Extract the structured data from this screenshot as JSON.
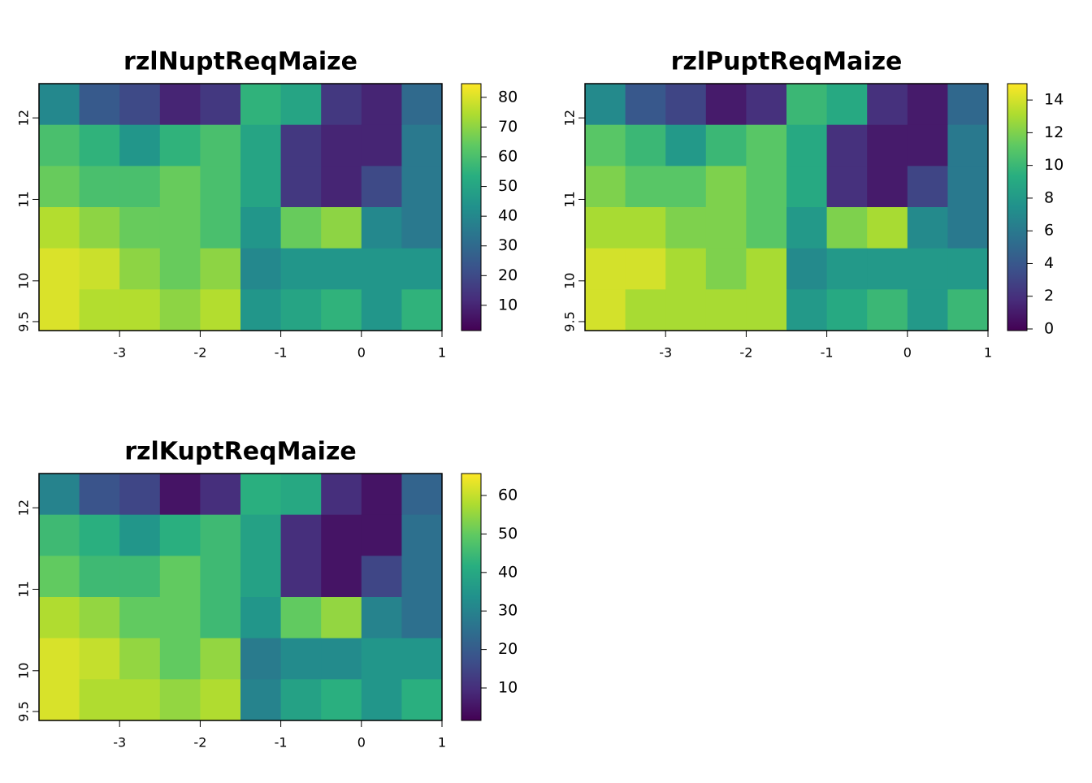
{
  "chart_data": [
    {
      "type": "raster",
      "title": "rzlNuptReqMaize",
      "xlim": [
        -4,
        1
      ],
      "ylim": [
        9.39,
        12.42
      ],
      "xticks": [
        -3,
        -2,
        -1,
        0,
        1
      ],
      "yticks": [
        9.5,
        10,
        11,
        12
      ],
      "zlim": [
        1.5,
        84.6
      ],
      "zticks": [
        10,
        20,
        30,
        40,
        50,
        60,
        70,
        80
      ],
      "palette": [
        "#440154",
        "#472d7b",
        "#3b528b",
        "#2c728e",
        "#21918c",
        "#28ae80",
        "#5ec962",
        "#addc30",
        "#fde725"
      ],
      "values": [
        [
          40,
          25,
          20,
          10,
          15,
          55,
          50,
          15,
          10,
          30
        ],
        [
          60,
          55,
          45,
          55,
          60,
          50,
          15,
          10,
          10,
          35
        ],
        [
          65,
          60,
          60,
          65,
          60,
          50,
          15,
          10,
          20,
          35
        ],
        [
          75,
          70,
          65,
          65,
          60,
          45,
          65,
          70,
          40,
          35
        ],
        [
          80,
          78,
          70,
          65,
          70,
          40,
          45,
          45,
          45,
          45
        ],
        [
          80,
          75,
          75,
          70,
          75,
          45,
          50,
          55,
          45,
          55
        ]
      ]
    },
    {
      "type": "raster",
      "title": "rzlPuptReqMaize",
      "xlim": [
        -4,
        1
      ],
      "ylim": [
        9.39,
        12.42
      ],
      "xticks": [
        -3,
        -2,
        -1,
        0,
        1
      ],
      "yticks": [
        9.5,
        10,
        11,
        12
      ],
      "zlim": [
        -0.1,
        15
      ],
      "zticks": [
        0,
        2,
        4,
        6,
        8,
        10,
        12,
        14
      ],
      "palette": [
        "#440154",
        "#472d7b",
        "#3b528b",
        "#2c728e",
        "#21918c",
        "#28ae80",
        "#5ec962",
        "#addc30",
        "#fde725"
      ],
      "values": [
        [
          7,
          4,
          3,
          1,
          2,
          10,
          9,
          2,
          1,
          5
        ],
        [
          11,
          10,
          8,
          10,
          11,
          9,
          2,
          1,
          1,
          6
        ],
        [
          12,
          11,
          11,
          12,
          11,
          9,
          2,
          1,
          3,
          6
        ],
        [
          13,
          13,
          12,
          12,
          11,
          8,
          12,
          13,
          7,
          6
        ],
        [
          14,
          14,
          13,
          12,
          13,
          7,
          8,
          8,
          8,
          8
        ],
        [
          14,
          13,
          13,
          13,
          13,
          8,
          9,
          10,
          8,
          10
        ]
      ]
    },
    {
      "type": "raster",
      "title": "rzlKuptReqMaize",
      "xlim": [
        -4,
        1
      ],
      "ylim": [
        9.39,
        12.42
      ],
      "xticks": [
        -3,
        -2,
        -1,
        0,
        1
      ],
      "yticks": [
        9.5,
        10,
        11,
        12
      ],
      "zlim": [
        1.56,
        65.7
      ],
      "zticks": [
        10,
        20,
        30,
        40,
        50,
        60
      ],
      "palette": [
        "#440154",
        "#472d7b",
        "#3b528b",
        "#2c728e",
        "#21918c",
        "#28ae80",
        "#5ec962",
        "#addc30",
        "#fde725"
      ],
      "values": [
        [
          30,
          18,
          15,
          5,
          10,
          42,
          40,
          10,
          5,
          22
        ],
        [
          45,
          42,
          35,
          42,
          45,
          38,
          10,
          5,
          5,
          25
        ],
        [
          50,
          45,
          45,
          50,
          45,
          38,
          10,
          5,
          15,
          25
        ],
        [
          58,
          55,
          50,
          50,
          45,
          35,
          50,
          55,
          30,
          25
        ],
        [
          62,
          60,
          55,
          50,
          55,
          28,
          32,
          32,
          35,
          35
        ],
        [
          62,
          58,
          58,
          55,
          58,
          30,
          38,
          42,
          35,
          42
        ]
      ]
    }
  ]
}
